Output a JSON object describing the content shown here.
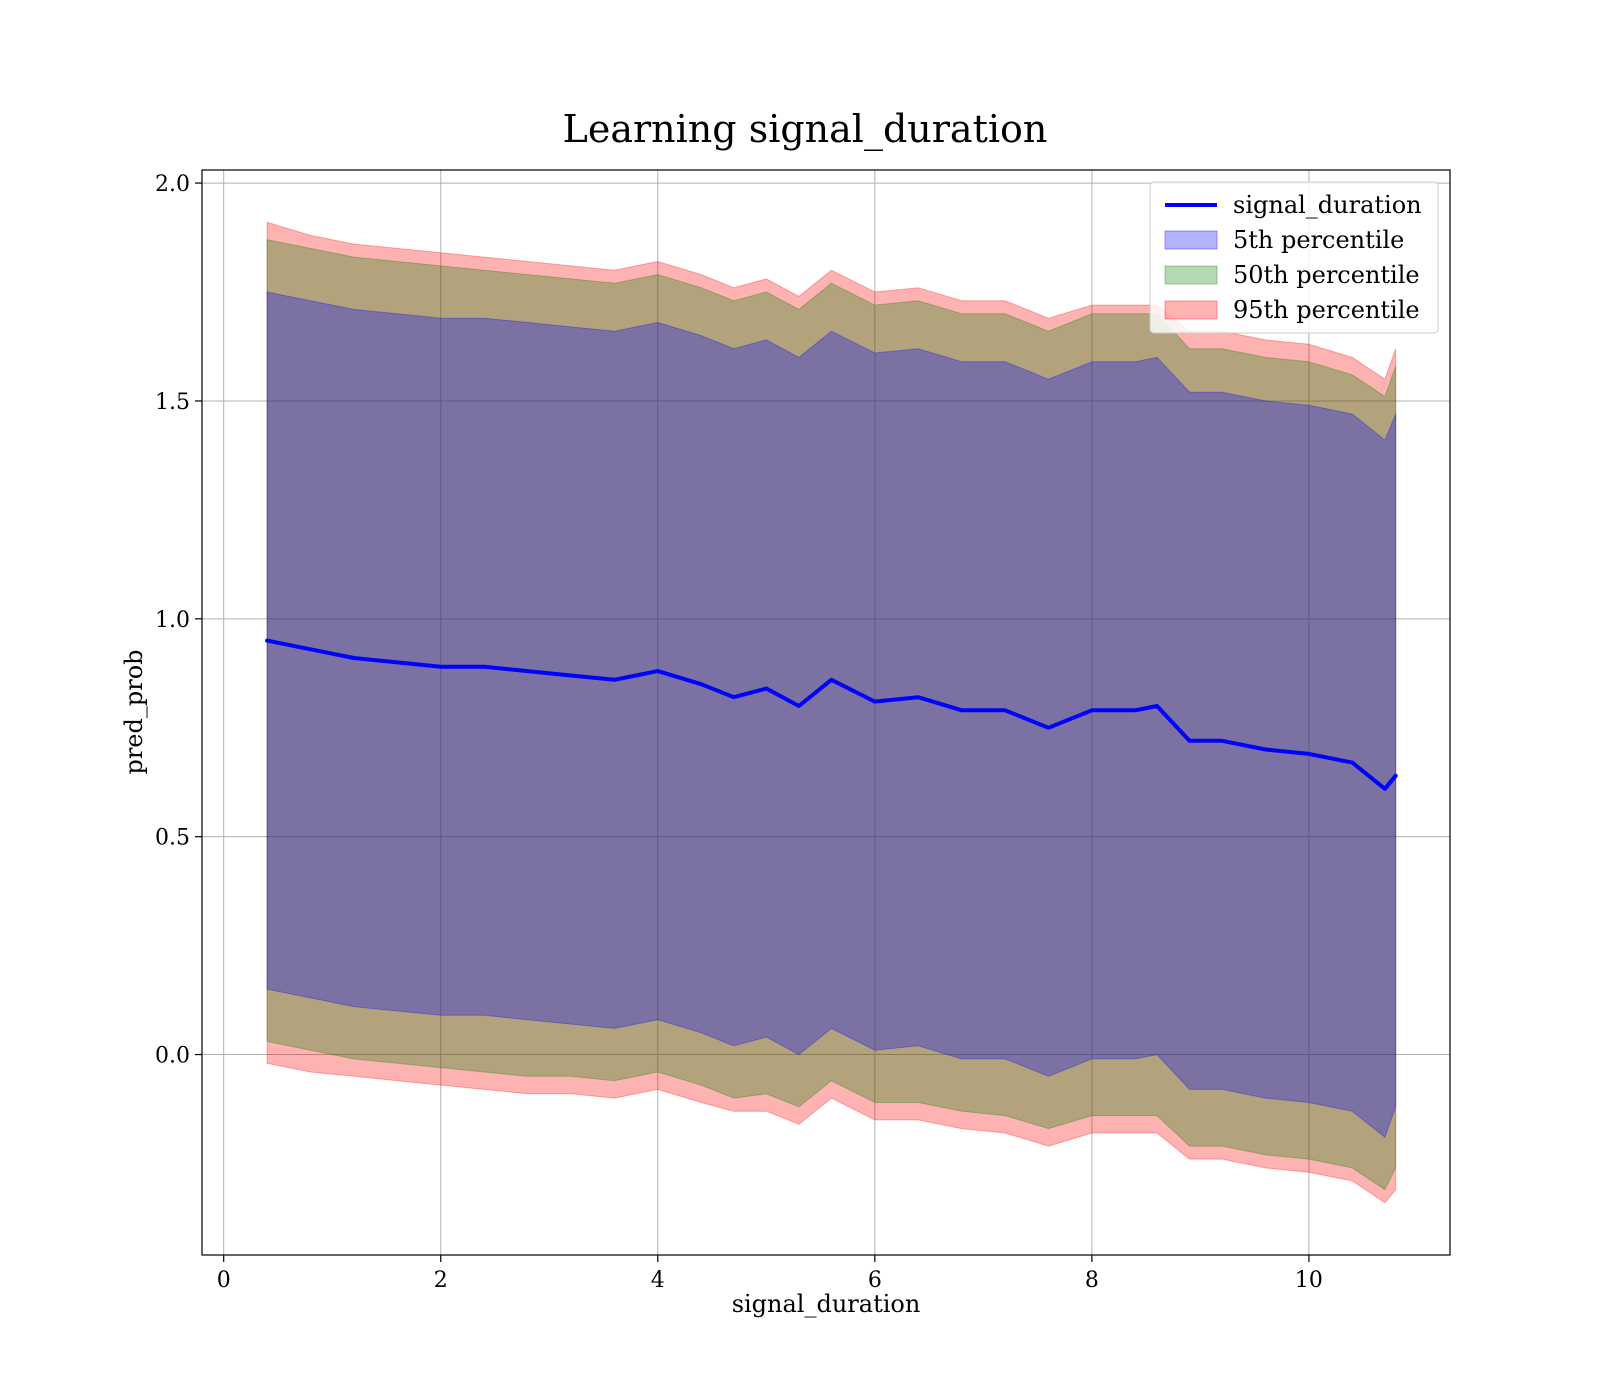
{
  "chart_data": {
    "type": "area",
    "title": "Learning signal_duration",
    "xlabel": "signal_duration",
    "ylabel": "pred_prob",
    "xlim": [
      -0.2,
      11.3
    ],
    "ylim": [
      -0.46,
      2.03
    ],
    "xticks": [
      0,
      2,
      4,
      6,
      8,
      10
    ],
    "yticks": [
      0.0,
      0.5,
      1.0,
      1.5,
      2.0
    ],
    "xtick_labels": [
      "0",
      "2",
      "4",
      "6",
      "8",
      "10"
    ],
    "ytick_labels": [
      "0.0",
      "0.5",
      "1.0",
      "1.5",
      "2.0"
    ],
    "grid": true,
    "legend_position": "top-right",
    "x": [
      0.4,
      0.8,
      1.2,
      1.6,
      2.0,
      2.4,
      2.8,
      3.2,
      3.6,
      4.0,
      4.4,
      4.7,
      5.0,
      5.3,
      5.6,
      6.0,
      6.4,
      6.8,
      7.2,
      7.6,
      8.0,
      8.4,
      8.6,
      8.9,
      9.2,
      9.6,
      10.0,
      10.4,
      10.7,
      10.8
    ],
    "line": {
      "name": "signal_duration",
      "color": "#0000ff",
      "values": [
        0.95,
        0.93,
        0.91,
        0.9,
        0.89,
        0.89,
        0.88,
        0.87,
        0.86,
        0.88,
        0.85,
        0.82,
        0.84,
        0.8,
        0.86,
        0.81,
        0.82,
        0.79,
        0.79,
        0.75,
        0.79,
        0.79,
        0.8,
        0.72,
        0.72,
        0.7,
        0.69,
        0.67,
        0.61,
        0.64
      ]
    },
    "bands": [
      {
        "name": "95th percentile",
        "color": "#ff0000",
        "opacity": 0.3,
        "lower": [
          -0.02,
          -0.04,
          -0.05,
          -0.06,
          -0.07,
          -0.08,
          -0.09,
          -0.09,
          -0.1,
          -0.08,
          -0.11,
          -0.13,
          -0.13,
          -0.16,
          -0.1,
          -0.15,
          -0.15,
          -0.17,
          -0.18,
          -0.21,
          -0.18,
          -0.18,
          -0.18,
          -0.24,
          -0.24,
          -0.26,
          -0.27,
          -0.29,
          -0.34,
          -0.31
        ],
        "upper": [
          1.91,
          1.88,
          1.86,
          1.85,
          1.84,
          1.83,
          1.82,
          1.81,
          1.8,
          1.82,
          1.79,
          1.76,
          1.78,
          1.74,
          1.8,
          1.75,
          1.76,
          1.73,
          1.73,
          1.69,
          1.72,
          1.72,
          1.72,
          1.66,
          1.66,
          1.64,
          1.63,
          1.6,
          1.55,
          1.62
        ]
      },
      {
        "name": "50th percentile",
        "color": "#008000",
        "opacity": 0.3,
        "lower": [
          0.03,
          0.01,
          -0.01,
          -0.02,
          -0.03,
          -0.04,
          -0.05,
          -0.05,
          -0.06,
          -0.04,
          -0.07,
          -0.1,
          -0.09,
          -0.12,
          -0.06,
          -0.11,
          -0.11,
          -0.13,
          -0.14,
          -0.17,
          -0.14,
          -0.14,
          -0.14,
          -0.21,
          -0.21,
          -0.23,
          -0.24,
          -0.26,
          -0.31,
          -0.26
        ],
        "upper": [
          1.87,
          1.85,
          1.83,
          1.82,
          1.81,
          1.8,
          1.79,
          1.78,
          1.77,
          1.79,
          1.76,
          1.73,
          1.75,
          1.71,
          1.77,
          1.72,
          1.73,
          1.7,
          1.7,
          1.66,
          1.7,
          1.7,
          1.7,
          1.62,
          1.62,
          1.6,
          1.59,
          1.56,
          1.51,
          1.58
        ]
      },
      {
        "name": "5th percentile",
        "color": "#0000ff",
        "opacity": 0.3,
        "lower": [
          0.15,
          0.13,
          0.11,
          0.1,
          0.09,
          0.09,
          0.08,
          0.07,
          0.06,
          0.08,
          0.05,
          0.02,
          0.04,
          0.0,
          0.06,
          0.01,
          0.02,
          -0.01,
          -0.01,
          -0.05,
          -0.01,
          -0.01,
          0.0,
          -0.08,
          -0.08,
          -0.1,
          -0.11,
          -0.13,
          -0.19,
          -0.12
        ],
        "upper": [
          1.75,
          1.73,
          1.71,
          1.7,
          1.69,
          1.69,
          1.68,
          1.67,
          1.66,
          1.68,
          1.65,
          1.62,
          1.64,
          1.6,
          1.66,
          1.61,
          1.62,
          1.59,
          1.59,
          1.55,
          1.59,
          1.59,
          1.6,
          1.52,
          1.52,
          1.5,
          1.49,
          1.47,
          1.41,
          1.47
        ]
      }
    ],
    "legend": [
      {
        "label": "signal_duration",
        "kind": "line",
        "color": "#0000ff"
      },
      {
        "label": "5th percentile",
        "kind": "patch",
        "color": "#0000ff"
      },
      {
        "label": "50th percentile",
        "kind": "patch",
        "color": "#008000"
      },
      {
        "label": "95th percentile",
        "kind": "patch",
        "color": "#ff0000"
      }
    ]
  }
}
